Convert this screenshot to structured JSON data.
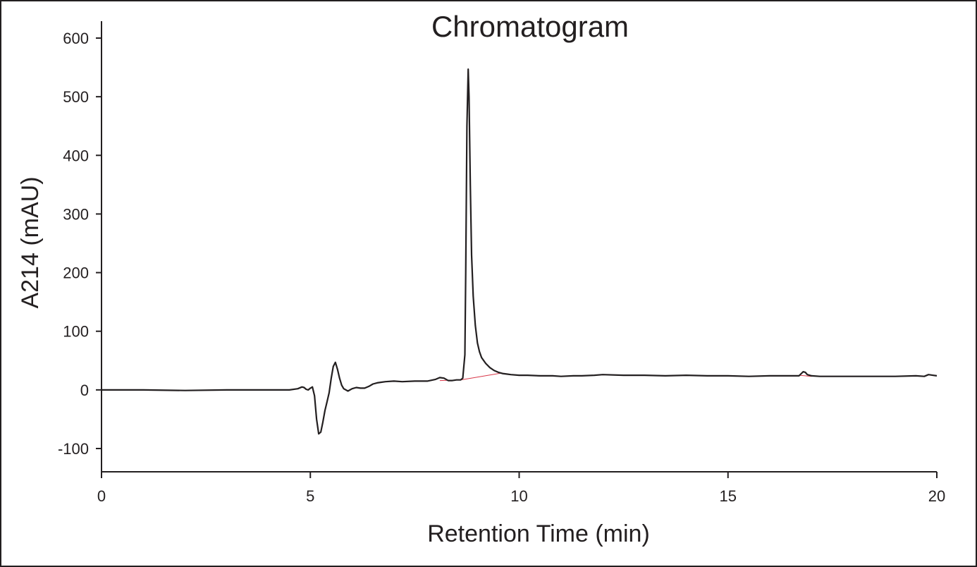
{
  "chart_data": {
    "type": "line",
    "title": "Chromatogram",
    "xlabel": "Retention Time (min)",
    "ylabel": "A214 (mAU)",
    "xlim": [
      0,
      20
    ],
    "ylim": [
      -140,
      620
    ],
    "x_ticks": [
      0,
      5,
      10,
      15,
      20
    ],
    "y_ticks": [
      -100,
      0,
      100,
      200,
      300,
      400,
      500,
      600
    ],
    "x_tick_labels": [
      "0",
      "5",
      "10",
      "15",
      "20"
    ],
    "y_tick_labels": [
      "-100",
      "0",
      "100",
      "200",
      "300",
      "400",
      "500",
      "600"
    ],
    "grid": false,
    "legend": "none",
    "series": [
      {
        "color": "#231f20",
        "x": [
          0.0,
          1.0,
          2.0,
          3.0,
          4.0,
          4.5,
          4.7,
          4.8,
          4.85,
          4.9,
          4.95,
          5.0,
          5.05,
          5.1,
          5.15,
          5.2,
          5.25,
          5.3,
          5.35,
          5.4,
          5.45,
          5.5,
          5.55,
          5.6,
          5.65,
          5.7,
          5.75,
          5.8,
          5.9,
          6.0,
          6.1,
          6.2,
          6.3,
          6.4,
          6.5,
          6.6,
          6.7,
          6.8,
          7.0,
          7.2,
          7.5,
          7.8,
          8.0,
          8.1,
          8.2,
          8.3,
          8.4,
          8.5,
          8.6,
          8.65,
          8.7,
          8.72,
          8.75,
          8.78,
          8.8,
          8.83,
          8.86,
          8.9,
          8.95,
          9.0,
          9.05,
          9.1,
          9.2,
          9.3,
          9.4,
          9.5,
          9.6,
          9.7,
          9.8,
          10.0,
          10.2,
          10.5,
          10.8,
          11.0,
          11.3,
          11.5,
          11.8,
          12.0,
          12.5,
          13.0,
          13.5,
          14.0,
          14.5,
          15.0,
          15.5,
          16.0,
          16.5,
          16.7,
          16.8,
          16.85,
          16.9,
          17.0,
          17.2,
          17.5,
          18.0,
          18.5,
          19.0,
          19.5,
          19.7,
          19.8,
          19.9,
          20.0
        ],
        "y": [
          0,
          0,
          -1,
          0,
          0,
          0,
          2,
          5,
          4,
          1,
          0,
          3,
          5,
          -10,
          -50,
          -75,
          -72,
          -55,
          -35,
          -20,
          -5,
          20,
          40,
          47,
          35,
          20,
          8,
          2,
          -2,
          2,
          4,
          3,
          3,
          6,
          10,
          12,
          13,
          14,
          15,
          14,
          15,
          15,
          18,
          21,
          20,
          16,
          16,
          17,
          17,
          20,
          60,
          200,
          450,
          547,
          500,
          350,
          230,
          160,
          110,
          80,
          65,
          55,
          45,
          38,
          33,
          30,
          28,
          27,
          26,
          25,
          25,
          24,
          24,
          23,
          24,
          24,
          25,
          26,
          25,
          25,
          24,
          25,
          24,
          24,
          23,
          24,
          24,
          24,
          31,
          30,
          26,
          24,
          23,
          23,
          23,
          23,
          23,
          24,
          23,
          26,
          25,
          24
        ]
      }
    ],
    "baselines": [
      {
        "color": "#d9384a",
        "x": [
          8.1,
          8.6,
          9.6
        ],
        "y": [
          16,
          17,
          29
        ]
      },
      {
        "color": "#d9384a",
        "x": [
          16.7,
          17.0
        ],
        "y": [
          25,
          23
        ]
      }
    ]
  }
}
